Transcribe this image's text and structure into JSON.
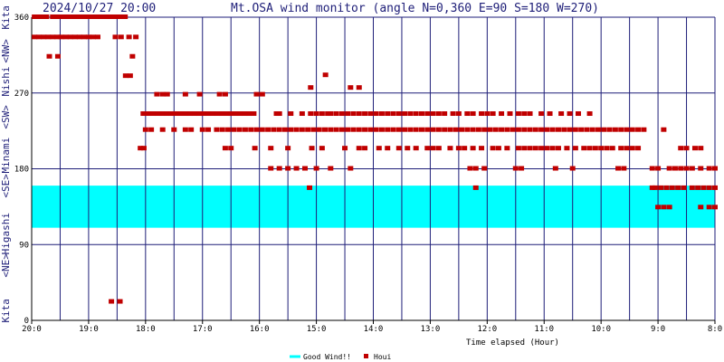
{
  "header": {
    "datetime": "2024/10/27 20:00",
    "title": "Mt.OSA wind monitor (angle N=0,360 E=90 S=180 W=270)"
  },
  "chart_data": {
    "type": "scatter",
    "title": "Mt.OSA wind monitor (angle N=0,360 E=90 S=180 W=270)",
    "xlabel": "Time elapsed (Hour)",
    "ylabel": "",
    "x_ticks": [
      "20:0",
      "19:0",
      "18:0",
      "17:0",
      "16:0",
      "15:0",
      "14:0",
      "13:0",
      "12:0",
      "11:0",
      "10:0",
      "9:0",
      "8:0"
    ],
    "y_ticks": [
      0,
      90,
      180,
      270,
      360
    ],
    "xlim": [
      0,
      12
    ],
    "ylim": [
      0,
      360
    ],
    "side_labels": [
      "Kita",
      "<NW>",
      "Nishi",
      "<SW>",
      "Minami",
      "<SE>",
      "Higashi",
      "<NE>",
      "Kita"
    ],
    "good_wind_band": [
      110,
      160
    ],
    "legend": [
      "Good Wind!!",
      "Houi"
    ],
    "colors": {
      "band": "#00ffff",
      "points": "#c00000",
      "grid": "#1e1e78",
      "text": "#1e1e78"
    },
    "series": [
      {
        "name": "Houi",
        "points": [
          [
            0.05,
            360
          ],
          [
            0.12,
            360
          ],
          [
            0.18,
            360
          ],
          [
            0.26,
            360
          ],
          [
            0.37,
            360
          ],
          [
            0.45,
            360
          ],
          [
            0.53,
            360
          ],
          [
            0.62,
            360
          ],
          [
            0.7,
            360
          ],
          [
            0.77,
            360
          ],
          [
            0.85,
            360
          ],
          [
            0.93,
            360
          ],
          [
            1.01,
            360
          ],
          [
            1.1,
            360
          ],
          [
            1.18,
            360
          ],
          [
            1.26,
            360
          ],
          [
            1.33,
            360
          ],
          [
            1.41,
            360
          ],
          [
            1.49,
            360
          ],
          [
            1.57,
            360
          ],
          [
            1.64,
            360
          ],
          [
            0.05,
            336
          ],
          [
            0.13,
            336
          ],
          [
            0.21,
            336
          ],
          [
            0.29,
            336
          ],
          [
            0.37,
            336
          ],
          [
            0.45,
            336
          ],
          [
            0.52,
            336
          ],
          [
            0.6,
            336
          ],
          [
            0.68,
            336
          ],
          [
            0.76,
            336
          ],
          [
            0.84,
            336
          ],
          [
            0.92,
            336
          ],
          [
            1.0,
            336
          ],
          [
            1.08,
            336
          ],
          [
            1.16,
            336
          ],
          [
            1.47,
            336
          ],
          [
            1.57,
            336
          ],
          [
            1.71,
            336
          ],
          [
            1.83,
            336
          ],
          [
            0.31,
            313
          ],
          [
            0.46,
            313
          ],
          [
            1.77,
            313
          ],
          [
            1.65,
            290
          ],
          [
            1.73,
            290
          ],
          [
            1.91,
            204
          ],
          [
            1.97,
            204
          ],
          [
            1.96,
            245
          ],
          [
            2.05,
            245
          ],
          [
            2.13,
            245
          ],
          [
            2.21,
            245
          ],
          [
            2.29,
            245
          ],
          [
            2.37,
            245
          ],
          [
            2.45,
            245
          ],
          [
            2.53,
            245
          ],
          [
            2.61,
            245
          ],
          [
            2.7,
            245
          ],
          [
            2.78,
            245
          ],
          [
            2.86,
            245
          ],
          [
            2.94,
            245
          ],
          [
            3.02,
            245
          ],
          [
            3.1,
            245
          ],
          [
            3.18,
            245
          ],
          [
            3.26,
            245
          ],
          [
            3.34,
            245
          ],
          [
            3.42,
            245
          ],
          [
            3.5,
            245
          ],
          [
            3.58,
            245
          ],
          [
            3.66,
            245
          ],
          [
            3.74,
            245
          ],
          [
            3.82,
            245
          ],
          [
            3.9,
            245
          ],
          [
            2.2,
            268
          ],
          [
            2.3,
            268
          ],
          [
            2.38,
            268
          ],
          [
            2.7,
            268
          ],
          [
            2.95,
            268
          ],
          [
            3.3,
            268
          ],
          [
            3.4,
            268
          ],
          [
            3.95,
            268
          ],
          [
            4.05,
            268
          ],
          [
            2.0,
            226
          ],
          [
            2.1,
            226
          ],
          [
            2.3,
            226
          ],
          [
            2.5,
            226
          ],
          [
            2.7,
            226
          ],
          [
            2.8,
            226
          ],
          [
            3.0,
            226
          ],
          [
            3.1,
            226
          ],
          [
            3.25,
            226
          ],
          [
            3.35,
            226
          ],
          [
            3.45,
            226
          ],
          [
            3.55,
            226
          ],
          [
            3.65,
            226
          ],
          [
            3.75,
            226
          ],
          [
            3.85,
            226
          ],
          [
            3.95,
            226
          ],
          [
            4.05,
            226
          ],
          [
            4.15,
            226
          ],
          [
            4.25,
            226
          ],
          [
            4.35,
            226
          ],
          [
            4.45,
            226
          ],
          [
            4.55,
            226
          ],
          [
            4.65,
            226
          ],
          [
            4.75,
            226
          ],
          [
            4.85,
            226
          ],
          [
            4.95,
            226
          ],
          [
            5.05,
            226
          ],
          [
            5.15,
            226
          ],
          [
            5.25,
            226
          ],
          [
            5.35,
            226
          ],
          [
            5.45,
            226
          ],
          [
            5.55,
            226
          ],
          [
            5.65,
            226
          ],
          [
            5.75,
            226
          ],
          [
            5.85,
            226
          ],
          [
            5.95,
            226
          ],
          [
            6.05,
            226
          ],
          [
            6.15,
            226
          ],
          [
            6.25,
            226
          ],
          [
            6.35,
            226
          ],
          [
            6.45,
            226
          ],
          [
            6.55,
            226
          ],
          [
            6.65,
            226
          ],
          [
            6.75,
            226
          ],
          [
            6.85,
            226
          ],
          [
            6.95,
            226
          ],
          [
            7.05,
            226
          ],
          [
            7.15,
            226
          ],
          [
            7.25,
            226
          ],
          [
            7.35,
            226
          ],
          [
            7.45,
            226
          ],
          [
            7.55,
            226
          ],
          [
            7.65,
            226
          ],
          [
            7.75,
            226
          ],
          [
            7.85,
            226
          ],
          [
            7.95,
            226
          ],
          [
            8.05,
            226
          ],
          [
            8.15,
            226
          ],
          [
            8.25,
            226
          ],
          [
            8.35,
            226
          ],
          [
            8.45,
            226
          ],
          [
            8.55,
            226
          ],
          [
            8.65,
            226
          ],
          [
            8.75,
            226
          ],
          [
            8.85,
            226
          ],
          [
            8.95,
            226
          ],
          [
            9.05,
            226
          ],
          [
            9.15,
            226
          ],
          [
            9.25,
            226
          ],
          [
            9.35,
            226
          ],
          [
            9.45,
            226
          ],
          [
            9.55,
            226
          ],
          [
            9.65,
            226
          ],
          [
            9.75,
            226
          ],
          [
            9.85,
            226
          ],
          [
            9.95,
            226
          ],
          [
            10.05,
            226
          ],
          [
            10.15,
            226
          ],
          [
            10.25,
            226
          ],
          [
            10.35,
            226
          ],
          [
            10.45,
            226
          ],
          [
            10.55,
            226
          ],
          [
            10.65,
            226
          ],
          [
            10.75,
            226
          ],
          [
            3.4,
            204
          ],
          [
            3.5,
            204
          ],
          [
            3.92,
            204
          ],
          [
            4.2,
            204
          ],
          [
            4.5,
            204
          ],
          [
            4.92,
            204
          ],
          [
            5.1,
            204
          ],
          [
            5.5,
            204
          ],
          [
            5.75,
            204
          ],
          [
            5.85,
            204
          ],
          [
            6.1,
            204
          ],
          [
            6.25,
            204
          ],
          [
            6.45,
            204
          ],
          [
            6.6,
            204
          ],
          [
            6.75,
            204
          ],
          [
            6.95,
            204
          ],
          [
            7.05,
            204
          ],
          [
            7.15,
            204
          ],
          [
            7.35,
            204
          ],
          [
            7.5,
            204
          ],
          [
            7.6,
            204
          ],
          [
            7.75,
            204
          ],
          [
            7.9,
            204
          ],
          [
            8.1,
            204
          ],
          [
            8.2,
            204
          ],
          [
            8.35,
            204
          ],
          [
            8.55,
            204
          ],
          [
            8.65,
            204
          ],
          [
            8.75,
            204
          ],
          [
            8.85,
            204
          ],
          [
            8.95,
            204
          ],
          [
            9.05,
            204
          ],
          [
            9.15,
            204
          ],
          [
            9.25,
            204
          ],
          [
            9.4,
            204
          ],
          [
            9.55,
            204
          ],
          [
            9.7,
            204
          ],
          [
            9.8,
            204
          ],
          [
            9.9,
            204
          ],
          [
            10.0,
            204
          ],
          [
            10.1,
            204
          ],
          [
            10.2,
            204
          ],
          [
            10.35,
            204
          ],
          [
            10.45,
            204
          ],
          [
            10.55,
            204
          ],
          [
            10.65,
            204
          ],
          [
            11.4,
            204
          ],
          [
            11.5,
            204
          ],
          [
            11.65,
            204
          ],
          [
            11.75,
            204
          ],
          [
            4.3,
            245
          ],
          [
            4.35,
            245
          ],
          [
            4.55,
            245
          ],
          [
            4.75,
            245
          ],
          [
            4.9,
            245
          ],
          [
            5.0,
            245
          ],
          [
            5.1,
            245
          ],
          [
            5.2,
            245
          ],
          [
            5.25,
            245
          ],
          [
            5.35,
            245
          ],
          [
            5.45,
            245
          ],
          [
            5.55,
            245
          ],
          [
            5.65,
            245
          ],
          [
            5.75,
            245
          ],
          [
            5.85,
            245
          ],
          [
            5.95,
            245
          ],
          [
            6.05,
            245
          ],
          [
            6.15,
            245
          ],
          [
            6.25,
            245
          ],
          [
            6.35,
            245
          ],
          [
            6.45,
            245
          ],
          [
            6.55,
            245
          ],
          [
            6.65,
            245
          ],
          [
            6.75,
            245
          ],
          [
            6.85,
            245
          ],
          [
            6.95,
            245
          ],
          [
            7.05,
            245
          ],
          [
            7.15,
            245
          ],
          [
            7.25,
            245
          ],
          [
            7.4,
            245
          ],
          [
            7.5,
            245
          ],
          [
            7.65,
            245
          ],
          [
            7.75,
            245
          ],
          [
            7.9,
            245
          ],
          [
            8.0,
            245
          ],
          [
            8.1,
            245
          ],
          [
            8.25,
            245
          ],
          [
            8.4,
            245
          ],
          [
            8.55,
            245
          ],
          [
            8.65,
            245
          ],
          [
            8.75,
            245
          ],
          [
            8.95,
            245
          ],
          [
            9.1,
            245
          ],
          [
            9.3,
            245
          ],
          [
            9.45,
            245
          ],
          [
            9.6,
            245
          ],
          [
            9.8,
            245
          ],
          [
            4.9,
            276
          ],
          [
            5.6,
            276
          ],
          [
            5.75,
            276
          ],
          [
            5.16,
            291
          ],
          [
            4.2,
            180
          ],
          [
            4.35,
            180
          ],
          [
            4.5,
            180
          ],
          [
            4.65,
            180
          ],
          [
            4.8,
            180
          ],
          [
            5.0,
            180
          ],
          [
            5.25,
            180
          ],
          [
            5.6,
            180
          ],
          [
            7.7,
            180
          ],
          [
            7.8,
            180
          ],
          [
            7.95,
            180
          ],
          [
            8.5,
            180
          ],
          [
            8.6,
            180
          ],
          [
            9.2,
            180
          ],
          [
            9.5,
            180
          ],
          [
            10.3,
            180
          ],
          [
            10.4,
            180
          ],
          [
            10.9,
            180
          ],
          [
            11.0,
            180
          ],
          [
            11.2,
            180
          ],
          [
            11.3,
            180
          ],
          [
            11.4,
            180
          ],
          [
            11.5,
            180
          ],
          [
            11.6,
            180
          ],
          [
            11.75,
            180
          ],
          [
            11.9,
            180
          ],
          [
            12.0,
            180
          ],
          [
            4.88,
            157
          ],
          [
            7.8,
            157
          ],
          [
            10.9,
            157
          ],
          [
            10.95,
            157
          ],
          [
            11.05,
            157
          ],
          [
            11.15,
            157
          ],
          [
            11.25,
            157
          ],
          [
            11.35,
            157
          ],
          [
            11.45,
            157
          ],
          [
            11.6,
            157
          ],
          [
            11.7,
            157
          ],
          [
            11.8,
            157
          ],
          [
            11.9,
            157
          ],
          [
            12.0,
            157
          ],
          [
            11.0,
            134
          ],
          [
            11.1,
            134
          ],
          [
            11.2,
            134
          ],
          [
            11.75,
            134
          ],
          [
            11.9,
            134
          ],
          [
            12.0,
            134
          ],
          [
            11.1,
            226
          ],
          [
            1.4,
            22
          ],
          [
            1.55,
            22
          ]
        ]
      }
    ]
  }
}
